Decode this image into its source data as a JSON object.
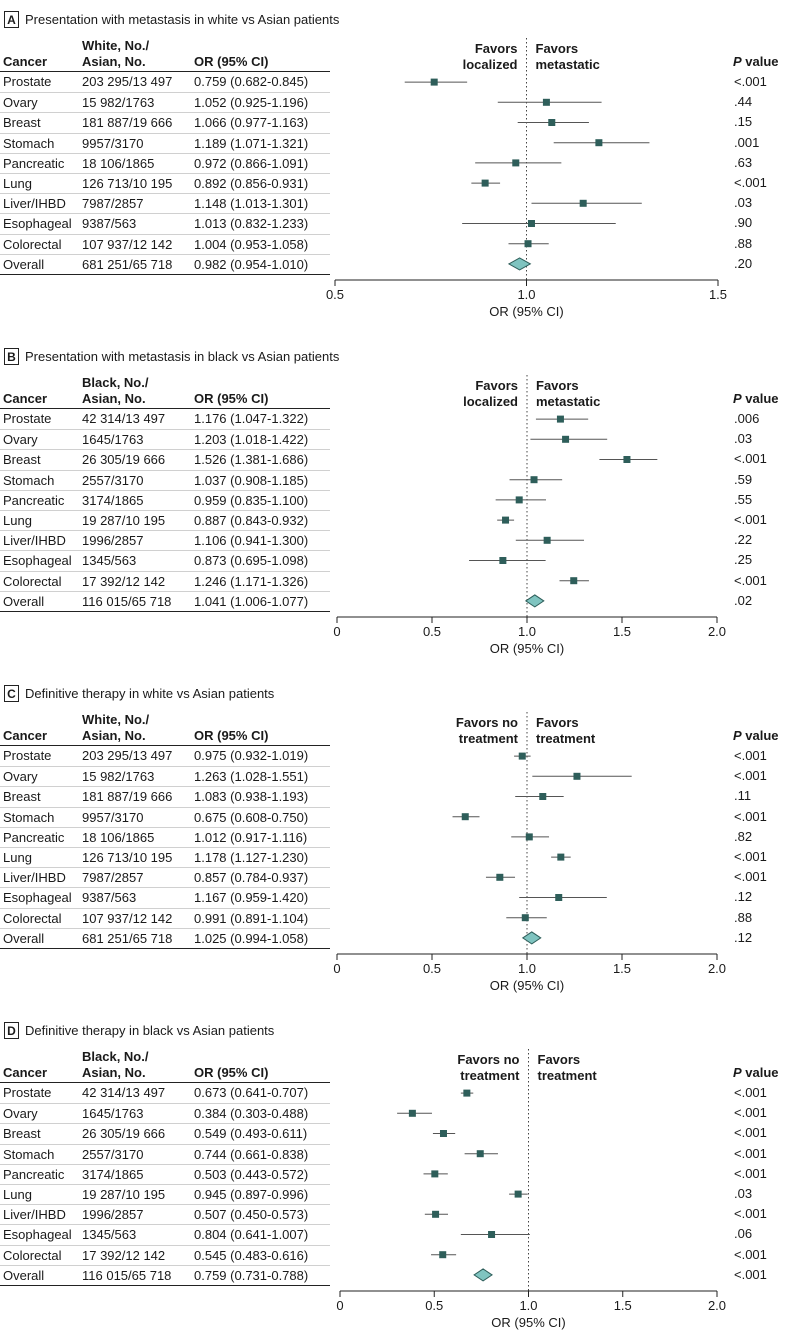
{
  "panels": [
    {
      "letter": "A",
      "title": "Presentation with metastasis in white vs Asian patients",
      "col_cancer": "Cancer",
      "col_counts": [
        "White, No./",
        "Asian, No."
      ],
      "col_or": "OR (95% CI)",
      "col_p_italic": "P",
      "col_p_rest": " value",
      "favor_left": [
        "Favors",
        "localized"
      ],
      "favor_right": [
        "Favors",
        "metastatic"
      ],
      "rows": [
        {
          "cancer": "Prostate",
          "counts": "203 295/13 497",
          "or_text": "0.759 (0.682-0.845)",
          "p": "<.001"
        },
        {
          "cancer": "Ovary",
          "counts": "15 982/1763",
          "or_text": "1.052 (0.925-1.196)",
          "p": ".44"
        },
        {
          "cancer": "Breast",
          "counts": "181 887/19 666",
          "or_text": "1.066 (0.977-1.163)",
          "p": ".15"
        },
        {
          "cancer": "Stomach",
          "counts": "9957/3170",
          "or_text": "1.189 (1.071-1.321)",
          "p": ".001"
        },
        {
          "cancer": "Pancreatic",
          "counts": "18 106/1865",
          "or_text": "0.972 (0.866-1.091)",
          "p": ".63"
        },
        {
          "cancer": "Lung",
          "counts": "126 713/10 195",
          "or_text": "0.892 (0.856-0.931)",
          "p": "<.001"
        },
        {
          "cancer": "Liver/IHBD",
          "counts": "7987/2857",
          "or_text": "1.148 (1.013-1.301)",
          "p": ".03"
        },
        {
          "cancer": "Esophageal",
          "counts": "9387/563",
          "or_text": "1.013 (0.832-1.233)",
          "p": ".90"
        },
        {
          "cancer": "Colorectal",
          "counts": "107 937/12 142",
          "or_text": "1.004 (0.953-1.058)",
          "p": ".88"
        },
        {
          "cancer": "Overall",
          "counts": "681 251/65 718",
          "or_text": "0.982 (0.954-1.010)",
          "p": ".20"
        }
      ],
      "xlabel": "OR (95% CI)",
      "ticks": [
        {
          "value": 0.5,
          "label": "0.5"
        },
        {
          "value": 1.0,
          "label": "1.0"
        },
        {
          "value": 1.5,
          "label": "1.5"
        }
      ]
    },
    {
      "letter": "B",
      "title": "Presentation with metastasis in black vs Asian patients",
      "col_cancer": "Cancer",
      "col_counts": [
        "Black, No./",
        "Asian, No."
      ],
      "col_or": "OR (95% CI)",
      "col_p_italic": "P",
      "col_p_rest": " value",
      "favor_left": [
        "Favors",
        "localized"
      ],
      "favor_right": [
        "Favors",
        "metastatic"
      ],
      "rows": [
        {
          "cancer": "Prostate",
          "counts": "42 314/13 497",
          "or_text": "1.176 (1.047-1.322)",
          "p": ".006"
        },
        {
          "cancer": "Ovary",
          "counts": "1645/1763",
          "or_text": "1.203 (1.018-1.422)",
          "p": ".03"
        },
        {
          "cancer": "Breast",
          "counts": "26 305/19 666",
          "or_text": "1.526 (1.381-1.686)",
          "p": "<.001"
        },
        {
          "cancer": "Stomach",
          "counts": "2557/3170",
          "or_text": "1.037 (0.908-1.185)",
          "p": ".59"
        },
        {
          "cancer": "Pancreatic",
          "counts": "3174/1865",
          "or_text": "0.959 (0.835-1.100)",
          "p": ".55"
        },
        {
          "cancer": "Lung",
          "counts": "19 287/10 195",
          "or_text": "0.887 (0.843-0.932)",
          "p": "<.001"
        },
        {
          "cancer": "Liver/IHBD",
          "counts": "1996/2857",
          "or_text": "1.106 (0.941-1.300)",
          "p": ".22"
        },
        {
          "cancer": "Esophageal",
          "counts": "1345/563",
          "or_text": "0.873 (0.695-1.098)",
          "p": ".25"
        },
        {
          "cancer": "Colorectal",
          "counts": "17 392/12 142",
          "or_text": "1.246 (1.171-1.326)",
          "p": "<.001"
        },
        {
          "cancer": "Overall",
          "counts": "116 015/65 718",
          "or_text": "1.041 (1.006-1.077)",
          "p": ".02"
        }
      ],
      "xlabel": "OR (95% CI)",
      "ticks": [
        {
          "value": 0,
          "label": "0"
        },
        {
          "value": 0.5,
          "label": "0.5"
        },
        {
          "value": 1.0,
          "label": "1.0"
        },
        {
          "value": 1.5,
          "label": "1.5"
        },
        {
          "value": 2.0,
          "label": "2.0"
        }
      ]
    },
    {
      "letter": "C",
      "title": "Definitive therapy in white vs Asian patients",
      "col_cancer": "Cancer",
      "col_counts": [
        "White, No./",
        "Asian, No."
      ],
      "col_or": "OR (95% CI)",
      "col_p_italic": "P",
      "col_p_rest": " value",
      "favor_left": [
        "Favors no",
        "treatment"
      ],
      "favor_right": [
        "Favors",
        "treatment"
      ],
      "rows": [
        {
          "cancer": "Prostate",
          "counts": "203 295/13 497",
          "or_text": "0.975 (0.932-1.019)",
          "p": "<.001"
        },
        {
          "cancer": "Ovary",
          "counts": "15 982/1763",
          "or_text": "1.263 (1.028-1.551)",
          "p": "<.001"
        },
        {
          "cancer": "Breast",
          "counts": "181 887/19 666",
          "or_text": "1.083 (0.938-1.193)",
          "p": ".11"
        },
        {
          "cancer": "Stomach",
          "counts": "9957/3170",
          "or_text": "0.675 (0.608-0.750)",
          "p": "<.001"
        },
        {
          "cancer": "Pancreatic",
          "counts": "18 106/1865",
          "or_text": "1.012 (0.917-1.116)",
          "p": ".82"
        },
        {
          "cancer": "Lung",
          "counts": "126 713/10 195",
          "or_text": "1.178 (1.127-1.230)",
          "p": "<.001"
        },
        {
          "cancer": "Liver/IHBD",
          "counts": "7987/2857",
          "or_text": "0.857 (0.784-0.937)",
          "p": "<.001"
        },
        {
          "cancer": "Esophageal",
          "counts": "9387/563",
          "or_text": "1.167 (0.959-1.420)",
          "p": ".12"
        },
        {
          "cancer": "Colorectal",
          "counts": "107 937/12 142",
          "or_text": "0.991 (0.891-1.104)",
          "p": ".88"
        },
        {
          "cancer": "Overall",
          "counts": "681 251/65 718",
          "or_text": "1.025 (0.994-1.058)",
          "p": ".12"
        }
      ],
      "xlabel": "OR (95% CI)",
      "ticks": [
        {
          "value": 0,
          "label": "0"
        },
        {
          "value": 0.5,
          "label": "0.5"
        },
        {
          "value": 1.0,
          "label": "1.0"
        },
        {
          "value": 1.5,
          "label": "1.5"
        },
        {
          "value": 2.0,
          "label": "2.0"
        }
      ]
    },
    {
      "letter": "D",
      "title": "Definitive therapy in black vs Asian patients",
      "col_cancer": "Cancer",
      "col_counts": [
        "Black, No./",
        "Asian, No."
      ],
      "col_or": "OR (95% CI)",
      "col_p_italic": "P",
      "col_p_rest": " value",
      "favor_left": [
        "Favors no",
        "treatment"
      ],
      "favor_right": [
        "Favors",
        "treatment"
      ],
      "rows": [
        {
          "cancer": "Prostate",
          "counts": "42 314/13 497",
          "or_text": "0.673 (0.641-0.707)",
          "p": "<.001"
        },
        {
          "cancer": "Ovary",
          "counts": "1645/1763",
          "or_text": "0.384 (0.303-0.488)",
          "p": "<.001"
        },
        {
          "cancer": "Breast",
          "counts": "26 305/19 666",
          "or_text": "0.549 (0.493-0.611)",
          "p": "<.001"
        },
        {
          "cancer": "Stomach",
          "counts": "2557/3170",
          "or_text": "0.744 (0.661-0.838)",
          "p": "<.001"
        },
        {
          "cancer": "Pancreatic",
          "counts": "3174/1865",
          "or_text": "0.503 (0.443-0.572)",
          "p": "<.001"
        },
        {
          "cancer": "Lung",
          "counts": "19 287/10 195",
          "or_text": "0.945 (0.897-0.996)",
          "p": ".03"
        },
        {
          "cancer": "Liver/IHBD",
          "counts": "1996/2857",
          "or_text": "0.507 (0.450-0.573)",
          "p": "<.001"
        },
        {
          "cancer": "Esophageal",
          "counts": "1345/563",
          "or_text": "0.804 (0.641-1.007)",
          "p": ".06"
        },
        {
          "cancer": "Colorectal",
          "counts": "17 392/12 142",
          "or_text": "0.545 (0.483-0.616)",
          "p": "<.001"
        },
        {
          "cancer": "Overall",
          "counts": "116 015/65 718",
          "or_text": "0.759 (0.731-0.788)",
          "p": "<.001"
        }
      ],
      "xlabel": "OR (95% CI)",
      "ticks": [
        {
          "value": 0,
          "label": "0"
        },
        {
          "value": 0.5,
          "label": "0.5"
        },
        {
          "value": 1.0,
          "label": "1.0"
        },
        {
          "value": 1.5,
          "label": "1.5"
        },
        {
          "value": 2.0,
          "label": "2.0"
        }
      ]
    }
  ],
  "chart_data": [
    {
      "type": "forest",
      "title": "Presentation with metastasis in white vs Asian patients",
      "xlabel": "OR (95% CI)",
      "xlim": [
        0.5,
        1.5
      ],
      "reference_line": 1.0,
      "categories": [
        "Prostate",
        "Ovary",
        "Breast",
        "Stomach",
        "Pancreatic",
        "Lung",
        "Liver/IHBD",
        "Esophageal",
        "Colorectal",
        "Overall"
      ],
      "or": [
        0.759,
        1.052,
        1.066,
        1.189,
        0.972,
        0.892,
        1.148,
        1.013,
        1.004,
        0.982
      ],
      "lower": [
        0.682,
        0.925,
        0.977,
        1.071,
        0.866,
        0.856,
        1.013,
        0.832,
        0.953,
        0.954
      ],
      "upper": [
        0.845,
        1.196,
        1.163,
        1.321,
        1.091,
        0.931,
        1.301,
        1.233,
        1.058,
        1.01
      ]
    },
    {
      "type": "forest",
      "title": "Presentation with metastasis in black vs Asian patients",
      "xlabel": "OR (95% CI)",
      "xlim": [
        0,
        2.0
      ],
      "reference_line": 1.0,
      "categories": [
        "Prostate",
        "Ovary",
        "Breast",
        "Stomach",
        "Pancreatic",
        "Lung",
        "Liver/IHBD",
        "Esophageal",
        "Colorectal",
        "Overall"
      ],
      "or": [
        1.176,
        1.203,
        1.526,
        1.037,
        0.959,
        0.887,
        1.106,
        0.873,
        1.246,
        1.041
      ],
      "lower": [
        1.047,
        1.018,
        1.381,
        0.908,
        0.835,
        0.843,
        0.941,
        0.695,
        1.171,
        1.006
      ],
      "upper": [
        1.322,
        1.422,
        1.686,
        1.185,
        1.1,
        0.932,
        1.3,
        1.098,
        1.326,
        1.077
      ]
    },
    {
      "type": "forest",
      "title": "Definitive therapy in white vs Asian patients",
      "xlabel": "OR (95% CI)",
      "xlim": [
        0,
        2.0
      ],
      "reference_line": 1.0,
      "categories": [
        "Prostate",
        "Ovary",
        "Breast",
        "Stomach",
        "Pancreatic",
        "Lung",
        "Liver/IHBD",
        "Esophageal",
        "Colorectal",
        "Overall"
      ],
      "or": [
        0.975,
        1.263,
        1.083,
        0.675,
        1.012,
        1.178,
        0.857,
        1.167,
        0.991,
        1.025
      ],
      "lower": [
        0.932,
        1.028,
        0.938,
        0.608,
        0.917,
        1.127,
        0.784,
        0.959,
        0.891,
        0.994
      ],
      "upper": [
        1.019,
        1.551,
        1.193,
        0.75,
        1.116,
        1.23,
        0.937,
        1.42,
        1.104,
        1.058
      ]
    },
    {
      "type": "forest",
      "title": "Definitive therapy in black vs Asian patients",
      "xlabel": "OR (95% CI)",
      "xlim": [
        0,
        2.0
      ],
      "reference_line": 1.0,
      "categories": [
        "Prostate",
        "Ovary",
        "Breast",
        "Stomach",
        "Pancreatic",
        "Lung",
        "Liver/IHBD",
        "Esophageal",
        "Colorectal",
        "Overall"
      ],
      "or": [
        0.673,
        0.384,
        0.549,
        0.744,
        0.503,
        0.945,
        0.507,
        0.804,
        0.545,
        0.759
      ],
      "lower": [
        0.641,
        0.303,
        0.493,
        0.661,
        0.443,
        0.897,
        0.45,
        0.641,
        0.483,
        0.731
      ],
      "upper": [
        0.707,
        0.488,
        0.611,
        0.838,
        0.572,
        0.996,
        0.573,
        1.007,
        0.616,
        0.788
      ]
    }
  ],
  "colors": {
    "marker": "#2e5e5a",
    "diamond_fill": "#7fc4c0",
    "diamond_stroke": "#2e5e5a",
    "ci_line": "#555555"
  }
}
